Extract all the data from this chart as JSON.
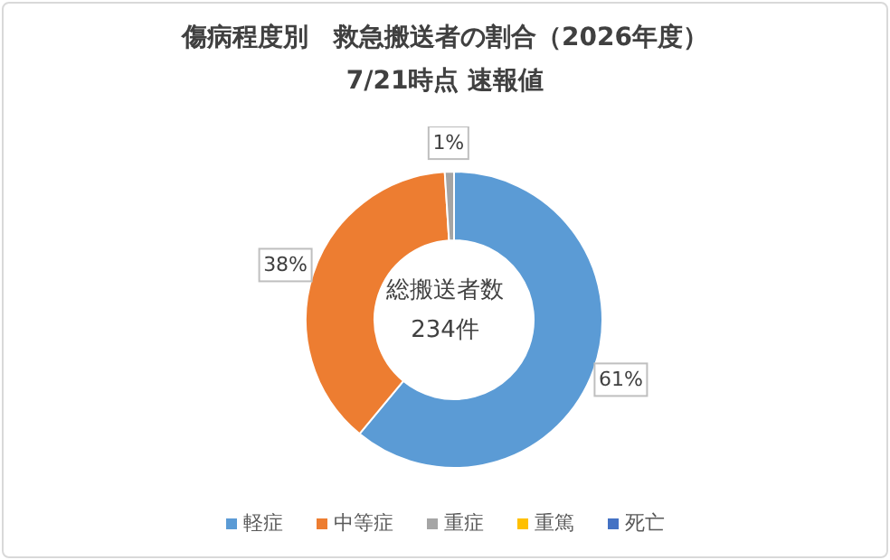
{
  "chart_data": {
    "type": "donut",
    "title": "傷病程度別　救急搬送者の割合（2026年度）",
    "subtitle": "7/21時点 速報値",
    "categories": [
      "軽症",
      "中等症",
      "重症",
      "重篤",
      "死亡"
    ],
    "values": [
      61,
      38,
      1,
      0,
      0
    ],
    "colors": [
      "#5b9bd5",
      "#ed7d31",
      "#a5a5a5",
      "#ffc000",
      "#4472c4"
    ],
    "value_labels": [
      "61%",
      "38%",
      "1%",
      null,
      null
    ],
    "annotations": [
      "総搬送者数",
      "234件"
    ],
    "legend": "bottom"
  }
}
